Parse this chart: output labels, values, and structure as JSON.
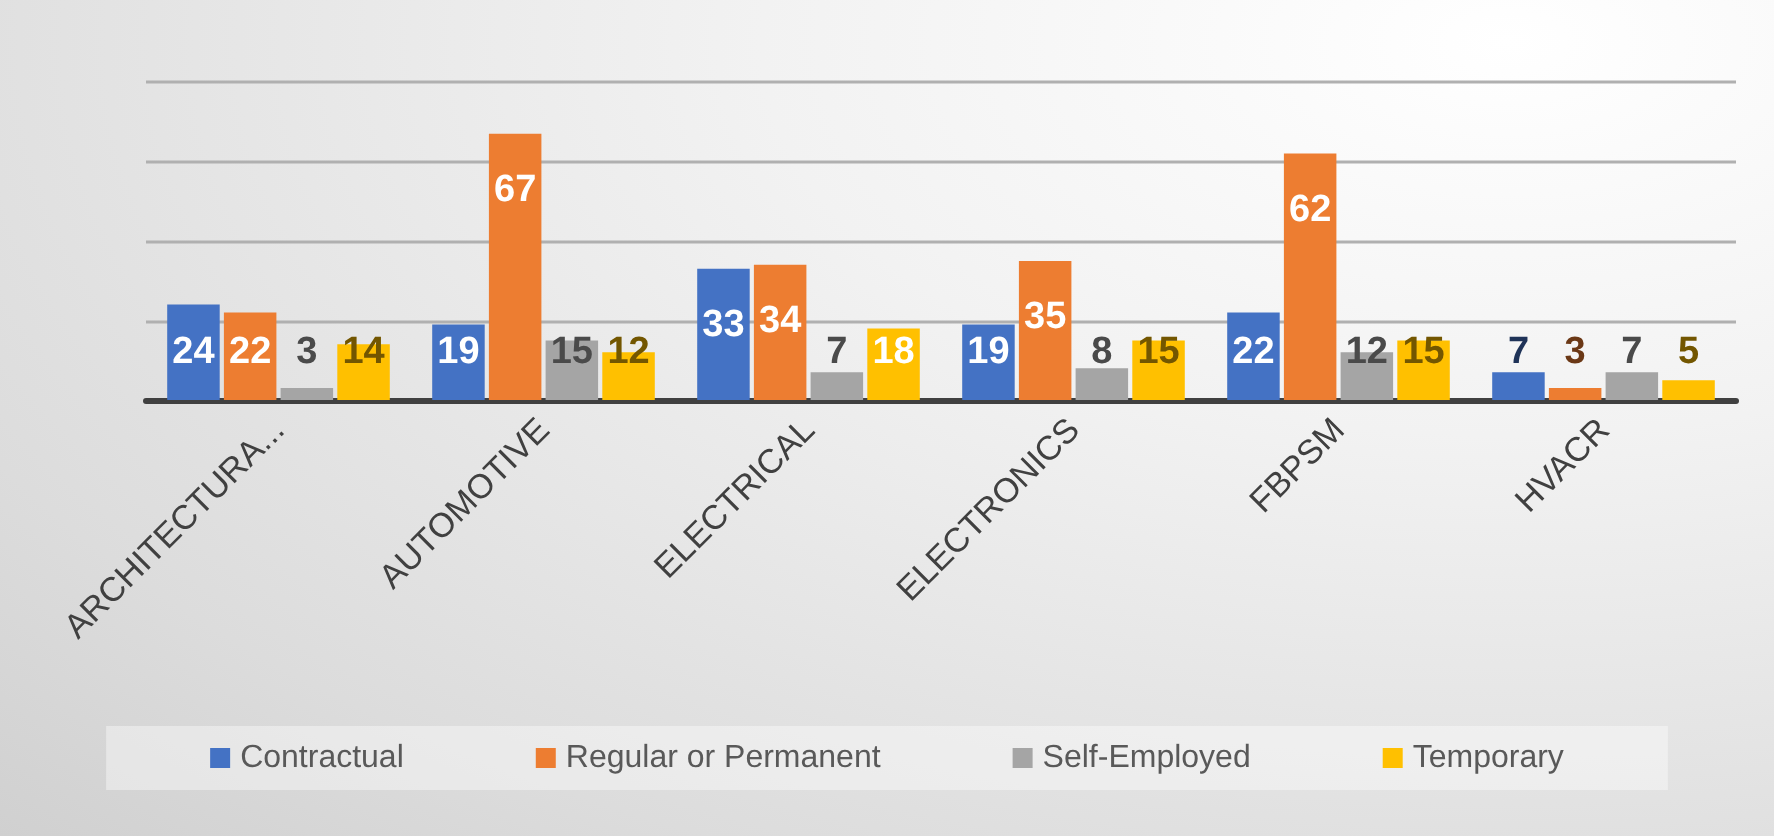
{
  "chart_data": {
    "type": "bar",
    "categories": [
      "ARCHITECTURA...",
      "AUTOMOTIVE",
      "ELECTRICAL",
      "ELECTRONICS",
      "FBPSM",
      "HVACR"
    ],
    "series": [
      {
        "name": "Contractual",
        "color": "#4472c4",
        "values": [
          24,
          19,
          33,
          19,
          22,
          7
        ]
      },
      {
        "name": "Regular or Permanent",
        "color": "#ed7d31",
        "values": [
          22,
          67,
          34,
          35,
          62,
          3
        ]
      },
      {
        "name": "Self-Employed",
        "color": "#a5a5a5",
        "values": [
          3,
          15,
          7,
          8,
          12,
          7
        ]
      },
      {
        "name": "Temporary",
        "color": "#ffc000",
        "values": [
          14,
          12,
          18,
          15,
          15,
          5
        ]
      }
    ],
    "ylim": [
      0,
      80
    ],
    "yticks": [
      0,
      20,
      40,
      60,
      80
    ],
    "grid": "y",
    "legend": "bottom",
    "data_labels": true,
    "tick_labels": "x"
  }
}
